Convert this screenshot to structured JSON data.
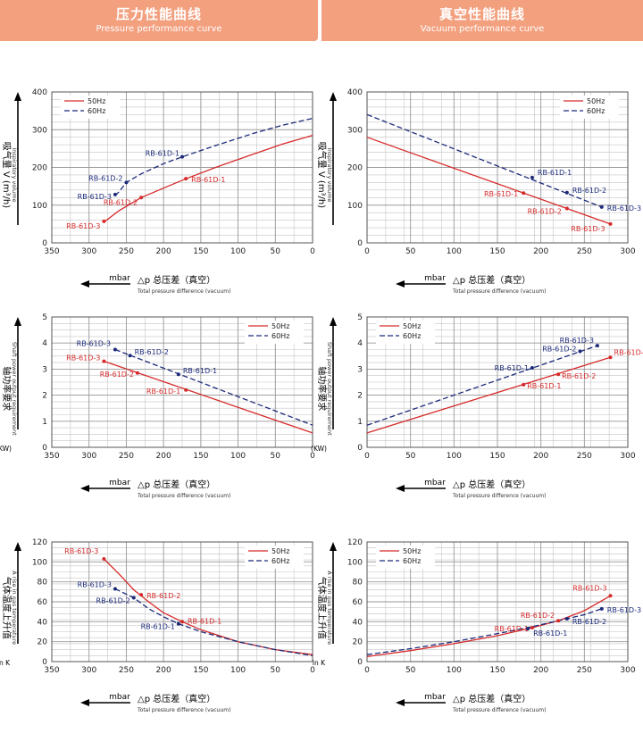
{
  "header": {
    "left_cn": "压力性能曲线",
    "left_en": "Pressure performance curve",
    "right_cn": "真空性能曲线",
    "right_en": "Vacuum performance curve"
  },
  "colors": {
    "hz50": "#d62a2a",
    "hz60": "#1b2a7a",
    "grid": "#9a9a9a",
    "banner": "#f3a07f"
  },
  "chart_data": [
    {
      "type": "line",
      "panel": "pressure-flow",
      "xlim": [
        350,
        0
      ],
      "xticks": [
        350,
        300,
        250,
        200,
        150,
        100,
        50,
        0
      ],
      "ylim": [
        0,
        400
      ],
      "yticks": [
        0,
        100,
        200,
        300,
        400
      ],
      "ylabel_cn": "吸气量 V (m³/h)",
      "ylabel_en": "Inspiratory volume",
      "ylabel_unit": "",
      "xlabel_cn": "△p 总压差（真空）",
      "xlabel_en": "Total pressure difference (vacuum)",
      "xlabel_unit": "mbar",
      "legend": "top-left",
      "series": [
        {
          "name": "50Hz",
          "x": [
            280,
            260,
            230,
            200,
            170,
            130,
            80,
            40,
            0
          ],
          "y": [
            55,
            85,
            120,
            145,
            170,
            200,
            235,
            262,
            285
          ]
        },
        {
          "name": "60Hz",
          "x": [
            265,
            260,
            250,
            230,
            200,
            175,
            130,
            80,
            40,
            0
          ],
          "y": [
            125,
            135,
            160,
            183,
            210,
            228,
            258,
            290,
            312,
            330
          ]
        }
      ],
      "points": [
        {
          "series": "50Hz",
          "label": "RB-61D-1",
          "x": 170,
          "y": 170
        },
        {
          "series": "50Hz",
          "label": "RB-61D-2",
          "x": 230,
          "y": 120
        },
        {
          "series": "50Hz",
          "label": "RB-61D-3",
          "x": 280,
          "y": 57
        },
        {
          "series": "60Hz",
          "label": "RB-61D-1",
          "x": 175,
          "y": 228
        },
        {
          "series": "60Hz",
          "label": "RB-61D-2",
          "x": 250,
          "y": 160
        },
        {
          "series": "60Hz",
          "label": "RB-61D-3",
          "x": 265,
          "y": 128
        }
      ]
    },
    {
      "type": "line",
      "panel": "vacuum-flow",
      "xlim": [
        0,
        300
      ],
      "xticks": [
        0,
        50,
        100,
        150,
        200,
        250,
        300
      ],
      "ylim": [
        0,
        400
      ],
      "yticks": [
        0,
        100,
        200,
        300,
        400
      ],
      "ylabel_cn": "吸气量 V (m³/h)",
      "ylabel_en": "Inspiratory volume",
      "ylabel_unit": "",
      "xlabel_cn": "△p 总压差（真空）",
      "xlabel_en": "Total pressure difference (vacuum)",
      "xlabel_unit": "mbar",
      "legend": "top-right",
      "series": [
        {
          "name": "50Hz",
          "x": [
            0,
            280
          ],
          "y": [
            280,
            50
          ]
        },
        {
          "name": "60Hz",
          "x": [
            0,
            270
          ],
          "y": [
            340,
            95
          ]
        }
      ],
      "points": [
        {
          "series": "50Hz",
          "label": "RB-61D-1",
          "x": 180,
          "y": 132
        },
        {
          "series": "50Hz",
          "label": "RB-61D-2",
          "x": 230,
          "y": 91
        },
        {
          "series": "50Hz",
          "label": "RB-61D-3",
          "x": 280,
          "y": 50
        },
        {
          "series": "60Hz",
          "label": "RB-61D-1",
          "x": 190,
          "y": 173
        },
        {
          "series": "60Hz",
          "label": "RB-61D-2",
          "x": 230,
          "y": 133
        },
        {
          "series": "60Hz",
          "label": "RB-61D-3",
          "x": 270,
          "y": 95
        }
      ]
    },
    {
      "type": "line",
      "panel": "pressure-power",
      "xlim": [
        350,
        0
      ],
      "xticks": [
        350,
        300,
        250,
        200,
        150,
        100,
        50,
        0
      ],
      "ylim": [
        0,
        5
      ],
      "yticks": [
        0,
        1,
        2,
        3,
        4,
        5
      ],
      "ylabel_cn": "轴功率要求",
      "ylabel_en": "Shaft power output requirement",
      "ylabel_unit": "(KW)",
      "xlabel_cn": "△p 总压差（真空）",
      "xlabel_en": "Total pressure difference (vacuum)",
      "xlabel_unit": "mbar",
      "legend": "top-right",
      "series": [
        {
          "name": "50Hz",
          "x": [
            280,
            0
          ],
          "y": [
            3.3,
            0.55
          ]
        },
        {
          "name": "60Hz",
          "x": [
            265,
            0
          ],
          "y": [
            3.75,
            0.85
          ]
        }
      ],
      "points": [
        {
          "series": "50Hz",
          "label": "RB-61D-1",
          "x": 170,
          "y": 2.2
        },
        {
          "series": "50Hz",
          "label": "RB-61D-2",
          "x": 235,
          "y": 2.85
        },
        {
          "series": "50Hz",
          "label": "RB-61D-3",
          "x": 280,
          "y": 3.3
        },
        {
          "series": "60Hz",
          "label": "RB-61D-1",
          "x": 180,
          "y": 2.8
        },
        {
          "series": "60Hz",
          "label": "RB-61D-2",
          "x": 245,
          "y": 3.52
        },
        {
          "series": "60Hz",
          "label": "RB-61D-3",
          "x": 265,
          "y": 3.75
        }
      ]
    },
    {
      "type": "line",
      "panel": "vacuum-power",
      "xlim": [
        0,
        300
      ],
      "xticks": [
        0,
        50,
        100,
        150,
        200,
        250,
        300
      ],
      "ylim": [
        0,
        5
      ],
      "yticks": [
        0,
        1,
        2,
        3,
        4,
        5
      ],
      "ylabel_cn": "轴功率要求",
      "ylabel_en": "Shaft power output requirement",
      "ylabel_unit": "(KW)",
      "xlabel_cn": "△p 总压差（真空）",
      "xlabel_en": "Total pressure difference (vacuum)",
      "xlabel_unit": "mbar",
      "legend": "top-left",
      "series": [
        {
          "name": "50Hz",
          "x": [
            0,
            280
          ],
          "y": [
            0.55,
            3.45
          ]
        },
        {
          "name": "60Hz",
          "x": [
            0,
            265
          ],
          "y": [
            0.85,
            3.9
          ]
        }
      ],
      "points": [
        {
          "series": "50Hz",
          "label": "RB-61D-1",
          "x": 180,
          "y": 2.4
        },
        {
          "series": "50Hz",
          "label": "RB-61D-2",
          "x": 220,
          "y": 2.8
        },
        {
          "series": "50Hz",
          "label": "RB-61D-3",
          "x": 280,
          "y": 3.45
        },
        {
          "series": "60Hz",
          "label": "RB-61D-1",
          "x": 190,
          "y": 3.05
        },
        {
          "series": "60Hz",
          "label": "RB-61D-2",
          "x": 245,
          "y": 3.68
        },
        {
          "series": "60Hz",
          "label": "RB-61D-3",
          "x": 265,
          "y": 3.9
        }
      ]
    },
    {
      "type": "line",
      "panel": "pressure-temperature",
      "xlim": [
        350,
        0
      ],
      "xticks": [
        350,
        300,
        250,
        200,
        150,
        100,
        50,
        0
      ],
      "ylim": [
        0,
        120
      ],
      "yticks": [
        0,
        20,
        40,
        60,
        80,
        100,
        120
      ],
      "ylabel_cn": "气体温度上升值",
      "ylabel_en": "A rise in gas temperature",
      "ylabel_unit": "in K",
      "xlabel_cn": "△p 总压差（真空）",
      "xlabel_en": "Total pressure difference (vacuum)",
      "xlabel_unit": "mbar",
      "legend": "top-right",
      "series": [
        {
          "name": "50Hz",
          "x": [
            280,
            260,
            240,
            220,
            200,
            175,
            150,
            100,
            50,
            0
          ],
          "y": [
            103,
            88,
            72,
            60,
            49,
            40,
            32,
            20,
            12,
            7
          ]
        },
        {
          "name": "60Hz",
          "x": [
            265,
            240,
            220,
            200,
            180,
            150,
            100,
            50,
            0
          ],
          "y": [
            73,
            64,
            53,
            45,
            38,
            30,
            20,
            12,
            6
          ]
        }
      ],
      "points": [
        {
          "series": "50Hz",
          "label": "RB-61D-1",
          "x": 175,
          "y": 40
        },
        {
          "series": "50Hz",
          "label": "RB-61D-2",
          "x": 230,
          "y": 67
        },
        {
          "series": "50Hz",
          "label": "RB-61D-3",
          "x": 280,
          "y": 103
        },
        {
          "series": "60Hz",
          "label": "RB-61D-1",
          "x": 180,
          "y": 38
        },
        {
          "series": "60Hz",
          "label": "RB-61D-2",
          "x": 240,
          "y": 64
        },
        {
          "series": "60Hz",
          "label": "RB-61D-3",
          "x": 265,
          "y": 73
        }
      ]
    },
    {
      "type": "line",
      "panel": "vacuum-temperature",
      "xlim": [
        0,
        300
      ],
      "xticks": [
        0,
        50,
        100,
        150,
        200,
        250,
        300
      ],
      "ylim": [
        0,
        120
      ],
      "yticks": [
        0,
        20,
        40,
        60,
        80,
        100,
        120
      ],
      "ylabel_cn": "气体温度上升值",
      "ylabel_en": "A rise in gas temperature",
      "ylabel_unit": "in K",
      "xlabel_cn": "△p 总压差（真空）",
      "xlabel_en": "Total pressure difference (vacuum)",
      "xlabel_unit": "mbar",
      "legend": "top-left",
      "series": [
        {
          "name": "50Hz",
          "x": [
            0,
            50,
            100,
            150,
            190,
            220,
            250,
            280
          ],
          "y": [
            5,
            11,
            18,
            26,
            34,
            41,
            51,
            66
          ]
        },
        {
          "name": "60Hz",
          "x": [
            0,
            50,
            100,
            150,
            190,
            220,
            250,
            270
          ],
          "y": [
            7,
            13,
            20,
            28,
            35,
            41,
            47,
            53
          ]
        }
      ],
      "points": [
        {
          "series": "50Hz",
          "label": "RB-61D-1",
          "x": 190,
          "y": 34
        },
        {
          "series": "50Hz",
          "label": "RB-61D-2",
          "x": 220,
          "y": 41
        },
        {
          "series": "50Hz",
          "label": "RB-61D-3",
          "x": 280,
          "y": 66
        },
        {
          "series": "60Hz",
          "label": "RB-61D-1",
          "x": 185,
          "y": 33
        },
        {
          "series": "60Hz",
          "label": "RB-61D-2",
          "x": 230,
          "y": 43
        },
        {
          "series": "60Hz",
          "label": "RB-61D-3",
          "x": 270,
          "y": 53
        }
      ]
    }
  ]
}
